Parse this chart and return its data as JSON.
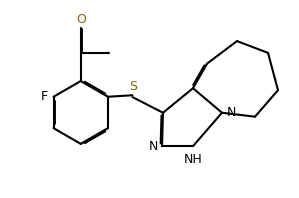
{
  "bg_color": "#ffffff",
  "line_color": "#000000",
  "lw": 1.5,
  "dbo": 0.05,
  "figsize": [
    2.99,
    1.98
  ],
  "dpi": 100,
  "xlim": [
    -0.5,
    9.5
  ],
  "ylim": [
    0.5,
    7.0
  ],
  "S_color": "#8B6000",
  "O_color": "#8B6000",
  "N_color": "#000000",
  "F_color": "#000000"
}
